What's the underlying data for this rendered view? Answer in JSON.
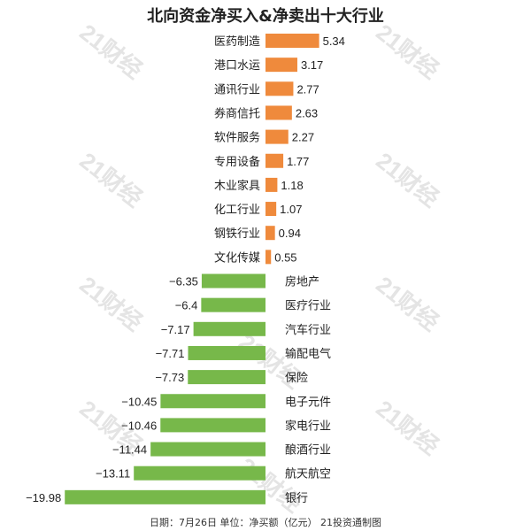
{
  "chart_data": {
    "type": "bar",
    "orientation": "horizontal",
    "title": "北向资金净买入&净卖出十大行业",
    "categories": [
      "医药制造",
      "港口水运",
      "通讯行业",
      "券商信托",
      "软件服务",
      "专用设备",
      "木业家具",
      "化工行业",
      "钢铁行业",
      "文化传媒",
      "房地产",
      "医疗行业",
      "汽车行业",
      "输配电气",
      "保险",
      "电子元件",
      "家电行业",
      "酿酒行业",
      "航天航空",
      "银行"
    ],
    "values": [
      5.34,
      3.17,
      2.77,
      2.63,
      2.27,
      1.77,
      1.18,
      1.07,
      0.94,
      0.55,
      -6.35,
      -6.4,
      -7.17,
      -7.71,
      -7.73,
      -10.45,
      -10.46,
      -11.44,
      -13.11,
      -19.98
    ],
    "value_labels": [
      "5.34",
      "3.17",
      "2.77",
      "2.63",
      "2.27",
      "1.77",
      "1.18",
      "1.07",
      "0.94",
      "0.55",
      "−6.35",
      "−6.4",
      "−7.17",
      "−7.71",
      "−7.73",
      "−10.45",
      "−10.46",
      "−11.44",
      "−13.11",
      "−19.98"
    ],
    "colors": {
      "positive": "#ef8a3c",
      "negative": "#77b84a"
    },
    "footer": "日期：7月26日  单位：净买额（亿元）  21投资通制图",
    "watermark": "21财经"
  }
}
